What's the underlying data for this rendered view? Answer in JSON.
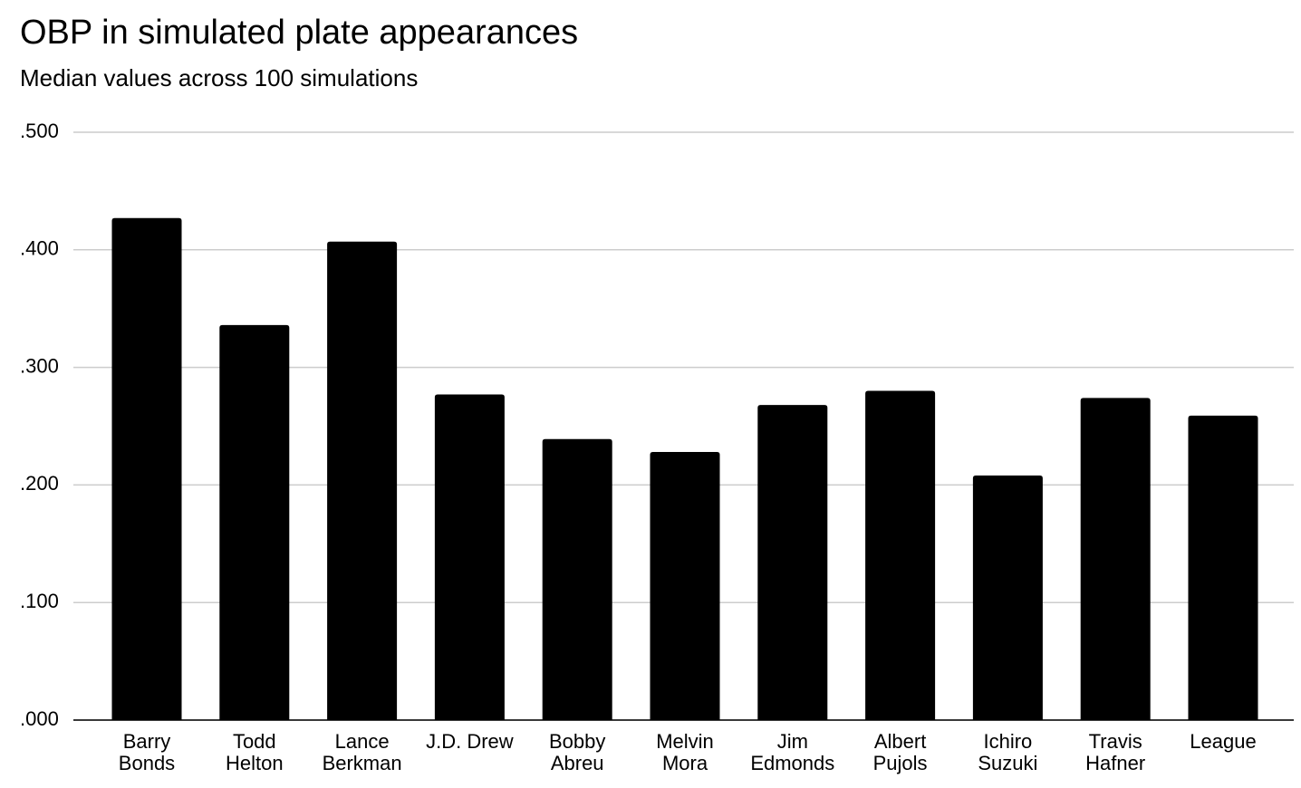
{
  "chart_data": {
    "type": "bar",
    "title": "OBP in simulated plate appearances",
    "subtitle": "Median values across 100 simulations",
    "categories": [
      "Barry Bonds",
      "Todd Helton",
      "Lance Berkman",
      "J.D. Drew",
      "Bobby Abreu",
      "Melvin Mora",
      "Jim Edmonds",
      "Albert Pujols",
      "Ichiro Suzuki",
      "Travis Hafner",
      "League"
    ],
    "values": [
      0.427,
      0.336,
      0.407,
      0.277,
      0.239,
      0.228,
      0.268,
      0.28,
      0.208,
      0.274,
      0.259
    ],
    "color": "#000000",
    "ylim": [
      0,
      0.5
    ],
    "yticks": [
      {
        "value": 0,
        "label": ".000"
      },
      {
        "value": 0.1,
        "label": ".100"
      },
      {
        "value": 0.2,
        "label": ".200"
      },
      {
        "value": 0.3,
        "label": ".300"
      },
      {
        "value": 0.4,
        "label": ".400"
      },
      {
        "value": 0.5,
        "label": ".500"
      }
    ],
    "grid": true
  }
}
